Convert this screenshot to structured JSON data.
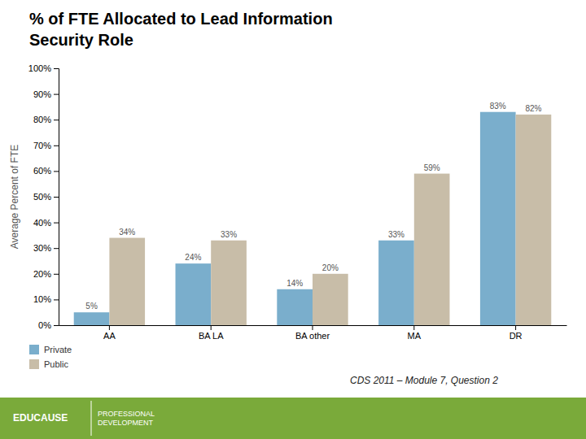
{
  "chart_data": {
    "type": "bar",
    "title": "% of FTE Allocated to Lead Information\nSecurity Role",
    "categories": [
      "AA",
      "BA LA",
      "BA other",
      "MA",
      "DR"
    ],
    "series": [
      {
        "name": "Private",
        "color": "#7aaecc",
        "values": [
          5,
          24,
          14,
          33,
          83
        ],
        "value_labels": [
          "5%",
          "24%",
          "14%",
          "33%",
          "83%"
        ]
      },
      {
        "name": "Public",
        "color": "#c8bda8",
        "values": [
          34,
          33,
          20,
          59,
          82
        ],
        "value_labels": [
          "34%",
          "33%",
          "20%",
          "59%",
          "82%"
        ]
      }
    ],
    "y_label": "Average Percent of FTE",
    "ylim": [
      0,
      100
    ],
    "yticks": [
      {
        "value": 0,
        "label": "0%"
      },
      {
        "value": 10,
        "label": "10%"
      },
      {
        "value": 20,
        "label": "20%"
      },
      {
        "value": 30,
        "label": "30%"
      },
      {
        "value": 40,
        "label": "40%"
      },
      {
        "value": 50,
        "label": "50%"
      },
      {
        "value": 60,
        "label": "60%"
      },
      {
        "value": 70,
        "label": "70%"
      },
      {
        "value": 80,
        "label": "80%"
      },
      {
        "value": 90,
        "label": "90%"
      },
      {
        "value": 100,
        "label": "100%"
      }
    ],
    "data_labels": true,
    "grid": false,
    "legend": "bottom",
    "annotations": [
      "CDS 2011 – Module 7, Question 2",
      "EDUCAUSE",
      "PROFESSIONAL",
      "DEVELOPMENT"
    ]
  }
}
